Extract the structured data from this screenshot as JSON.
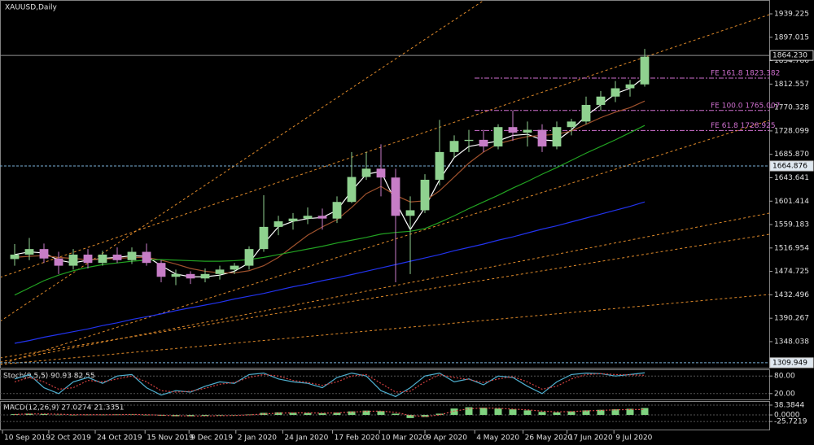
{
  "chart_data": [
    {
      "type": "candlestick",
      "title": "XAUUSD,Daily",
      "x": [
        1,
        2,
        3,
        4,
        5,
        6,
        7,
        8,
        9,
        10,
        11,
        12,
        13,
        14,
        15,
        16,
        17,
        18,
        19,
        20,
        21,
        22,
        23,
        24,
        25,
        26,
        27,
        28,
        29,
        30,
        31,
        32,
        33,
        34,
        35,
        36,
        37,
        38,
        39,
        40,
        41,
        42,
        43,
        44
      ],
      "open": [
        1497,
        1505,
        1515,
        1498,
        1485,
        1505,
        1490,
        1505,
        1495,
        1510,
        1490,
        1465,
        1470,
        1462,
        1470,
        1478,
        1485,
        1515,
        1555,
        1565,
        1570,
        1575,
        1570,
        1600,
        1645,
        1660,
        1644,
        1575,
        1585,
        1640,
        1690,
        1710,
        1712,
        1700,
        1735,
        1725,
        1730,
        1700,
        1735,
        1745,
        1775,
        1790,
        1805,
        1812
      ],
      "high": [
        1524,
        1535,
        1525,
        1510,
        1515,
        1515,
        1512,
        1518,
        1518,
        1525,
        1495,
        1478,
        1475,
        1480,
        1485,
        1490,
        1520,
        1612,
        1575,
        1580,
        1590,
        1588,
        1610,
        1690,
        1690,
        1704,
        1660,
        1610,
        1650,
        1748,
        1720,
        1730,
        1730,
        1740,
        1765,
        1745,
        1740,
        1745,
        1750,
        1790,
        1800,
        1818,
        1820,
        1876
      ],
      "low": [
        1485,
        1495,
        1490,
        1470,
        1478,
        1480,
        1485,
        1490,
        1488,
        1485,
        1455,
        1450,
        1452,
        1455,
        1460,
        1470,
        1478,
        1510,
        1540,
        1550,
        1560,
        1550,
        1562,
        1598,
        1640,
        1610,
        1455,
        1470,
        1580,
        1630,
        1680,
        1690,
        1690,
        1695,
        1710,
        1700,
        1690,
        1695,
        1720,
        1740,
        1765,
        1780,
        1790,
        1808
      ],
      "close": [
        1505,
        1515,
        1498,
        1485,
        1505,
        1490,
        1505,
        1495,
        1510,
        1490,
        1465,
        1470,
        1462,
        1470,
        1478,
        1485,
        1515,
        1555,
        1565,
        1570,
        1575,
        1570,
        1600,
        1645,
        1660,
        1644,
        1575,
        1585,
        1640,
        1690,
        1710,
        1712,
        1700,
        1735,
        1725,
        1730,
        1700,
        1735,
        1745,
        1775,
        1790,
        1805,
        1812,
        1862
      ],
      "up_color": "#8fd18f",
      "down_color": "#c77dc7",
      "overlays": [
        {
          "color": "#ffffff",
          "values": [
            1505,
            1510,
            1508,
            1495,
            1490,
            1495,
            1498,
            1500,
            1503,
            1502,
            1485,
            1470,
            1465,
            1465,
            1468,
            1475,
            1490,
            1525,
            1555,
            1565,
            1570,
            1572,
            1585,
            1620,
            1650,
            1655,
            1600,
            1550,
            1590,
            1640,
            1680,
            1700,
            1705,
            1710,
            1720,
            1722,
            1712,
            1710,
            1730,
            1755,
            1775,
            1795,
            1805,
            1825
          ]
        },
        {
          "color": "#a0522d",
          "values": [
            1500,
            1502,
            1503,
            1500,
            1498,
            1496,
            1497,
            1498,
            1500,
            1500,
            1495,
            1488,
            1480,
            1475,
            1472,
            1472,
            1476,
            1485,
            1500,
            1520,
            1540,
            1555,
            1568,
            1590,
            1615,
            1628,
            1612,
            1600,
            1602,
            1620,
            1645,
            1670,
            1690,
            1705,
            1712,
            1718,
            1720,
            1722,
            1728,
            1740,
            1752,
            1762,
            1770,
            1782
          ]
        },
        {
          "color": "#22a322",
          "values": [
            1432,
            1445,
            1458,
            1468,
            1476,
            1482,
            1487,
            1490,
            1493,
            1495,
            1496,
            1495,
            1494,
            1493,
            1493,
            1494,
            1496,
            1500,
            1505,
            1510,
            1515,
            1520,
            1526,
            1531,
            1536,
            1542,
            1545,
            1547,
            1552,
            1563,
            1575,
            1588,
            1600,
            1612,
            1625,
            1637,
            1650,
            1662,
            1675,
            1688,
            1700,
            1712,
            1725,
            1738
          ]
        },
        {
          "color": "#2233ee",
          "values": [
            1345,
            1350,
            1356,
            1361,
            1366,
            1371,
            1377,
            1382,
            1388,
            1393,
            1398,
            1404,
            1409,
            1414,
            1419,
            1425,
            1430,
            1435,
            1441,
            1447,
            1452,
            1458,
            1463,
            1469,
            1475,
            1481,
            1487,
            1493,
            1499,
            1505,
            1512,
            1518,
            1524,
            1531,
            1537,
            1544,
            1551,
            1557,
            1564,
            1571,
            1578,
            1585,
            1592,
            1600
          ]
        }
      ],
      "fib_levels": [
        {
          "value": 1823.382,
          "label": "FE 161.8 1823.382"
        },
        {
          "value": 1765.007,
          "label": "FE 100.0 1765.007"
        },
        {
          "value": 1728.925,
          "label": "FE 61.8 1728.925"
        }
      ],
      "price_lines": [
        {
          "value": 1864.23,
          "label": "1864.230"
        },
        1664.876,
        1309.949
      ],
      "xlim": [
        0,
        52.5
      ],
      "ylim": [
        1301,
        1964.2
      ],
      "yticks": [
        1939.225,
        1897.015,
        1854.786,
        1812.557,
        1770.328,
        1728.099,
        {
          "value": 1685.87,
          "label": "1685.870"
        },
        1643.641,
        1601.414,
        1559.183,
        1516.954,
        1474.725,
        1432.496,
        1390.267,
        1348.038
      ],
      "xticks": [
        {
          "value": 0.17,
          "label": "10 Sep 2019"
        },
        {
          "value": 3.33,
          "label": "2 Oct 2019"
        },
        {
          "value": 6.5,
          "label": "24 Oct 2019"
        },
        {
          "value": 9.9,
          "label": "15 Nov 2019"
        },
        {
          "value": 12.9,
          "label": "9 Dec 2019"
        },
        {
          "value": 16.1,
          "label": "2 Jan 2020"
        },
        {
          "value": 19.3,
          "label": "24 Jan 2020"
        },
        {
          "value": 22.7,
          "label": "17 Feb 2020"
        },
        {
          "value": 25.9,
          "label": "10 Mar 2020"
        },
        {
          "value": 29,
          "label": "9 Apr 2020"
        },
        {
          "value": 32.4,
          "label": "4 May 2020"
        },
        {
          "value": 35.7,
          "label": "26 May 2020"
        },
        {
          "value": 38.7,
          "label": "17 Jun 2020"
        },
        {
          "value": 41.9,
          "label": "9 Jul 2020"
        }
      ]
    },
    {
      "type": "stochastic",
      "title": "Stoch(9,5,5) 90.93 82.55",
      "x": [
        1,
        2,
        3,
        4,
        5,
        6,
        7,
        8,
        9,
        10,
        11,
        12,
        13,
        14,
        15,
        16,
        17,
        18,
        19,
        20,
        21,
        22,
        23,
        24,
        25,
        26,
        27,
        28,
        29,
        30,
        31,
        32,
        33,
        34,
        35,
        36,
        37,
        38,
        39,
        40,
        41,
        42,
        43,
        44
      ],
      "series": [
        {
          "color": "#4fb0d0",
          "values": [
            70,
            85,
            40,
            20,
            60,
            75,
            55,
            80,
            85,
            40,
            15,
            30,
            25,
            45,
            60,
            55,
            85,
            90,
            70,
            60,
            55,
            40,
            75,
            90,
            80,
            30,
            10,
            40,
            80,
            90,
            60,
            70,
            50,
            80,
            75,
            45,
            20,
            60,
            85,
            90,
            88,
            80,
            85,
            90.93
          ]
        },
        {
          "color": "#d04040",
          "values": [
            60,
            75,
            60,
            35,
            40,
            65,
            60,
            70,
            80,
            60,
            30,
            25,
            28,
            38,
            52,
            58,
            75,
            85,
            80,
            65,
            58,
            48,
            60,
            80,
            85,
            55,
            25,
            28,
            60,
            85,
            75,
            68,
            58,
            70,
            78,
            60,
            35,
            45,
            70,
            85,
            88,
            85,
            84,
            82.55
          ]
        }
      ],
      "xlim": [
        0,
        52.5
      ],
      "ylim": [
        0,
        100
      ],
      "yticks": [
        {
          "value": 80,
          "label": "80.00"
        },
        {
          "value": 20,
          "label": "20.00"
        }
      ]
    },
    {
      "type": "macd",
      "title": "MACD(12,26,9) 27.0274 21.3351",
      "x": [
        1,
        2,
        3,
        4,
        5,
        6,
        7,
        8,
        9,
        10,
        11,
        12,
        13,
        14,
        15,
        16,
        17,
        18,
        19,
        20,
        21,
        22,
        23,
        24,
        25,
        26,
        27,
        28,
        29,
        30,
        31,
        32,
        33,
        34,
        35,
        36,
        37,
        38,
        39,
        40,
        41,
        42,
        43,
        44
      ],
      "histogram": {
        "color": "#7fd37f",
        "values": [
          3,
          5,
          4,
          1,
          0,
          1,
          1,
          2,
          2,
          0,
          -3,
          -5,
          -5,
          -4,
          -2,
          -1,
          2,
          8,
          10,
          9,
          8,
          7,
          9,
          14,
          17,
          15,
          5,
          -12,
          -8,
          5,
          25,
          30,
          28,
          25,
          22,
          18,
          12,
          10,
          14,
          18,
          20,
          22,
          24,
          27.0274
        ]
      },
      "signal": {
        "color": "#e05050",
        "values": [
          2,
          4,
          4,
          3,
          1,
          1,
          1,
          1,
          2,
          1,
          -1,
          -3,
          -4,
          -4,
          -3,
          -2,
          0,
          4,
          7,
          8,
          8,
          7,
          8,
          11,
          14,
          15,
          10,
          -2,
          -6,
          0,
          15,
          24,
          27,
          26,
          23,
          20,
          15,
          12,
          13,
          16,
          18,
          20,
          21,
          21.3351
        ]
      },
      "xlim": [
        0,
        52.5
      ],
      "ylim": [
        -57,
        51
      ],
      "yticks": [
        38.3844,
        {
          "value": 0,
          "label": "0.0000"
        },
        -25.7219
      ]
    }
  ]
}
